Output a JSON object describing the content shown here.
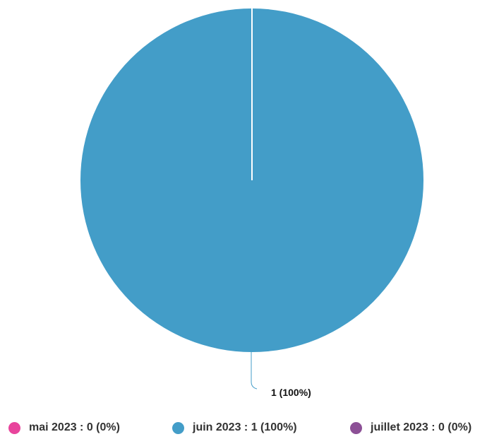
{
  "chart_data": {
    "type": "pie",
    "categories": [
      "mai 2023",
      "juin 2023",
      "juillet 2023"
    ],
    "values": [
      0,
      1,
      0
    ],
    "percentages": [
      "0%",
      "100%",
      "0%"
    ],
    "colors": [
      "#e8449c",
      "#439dc8",
      "#8c5096"
    ],
    "data_labels": [
      "1 (100%)"
    ],
    "legend_placement": "bottom",
    "legend_entries": [
      "mai 2023 : 0 (0%)",
      "juin 2023 : 1 (100%)",
      "juillet 2023 : 0 (0%)"
    ]
  }
}
